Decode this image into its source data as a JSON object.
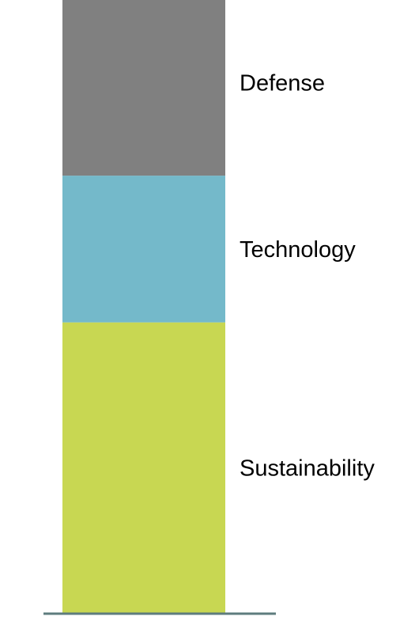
{
  "chart_data": {
    "type": "bar",
    "orientation": "vertical",
    "stacked": true,
    "categories": [
      ""
    ],
    "series": [
      {
        "name": "Sustainability",
        "values": [
          48.5
        ],
        "color": "#C8D752"
      },
      {
        "name": "Technology",
        "values": [
          24.5
        ],
        "color": "#74B9CA"
      },
      {
        "name": "Defense",
        "values": [
          31.0
        ],
        "color": "#808080"
      }
    ],
    "axis_color": "#5E7C7E",
    "label_placement": "right-of-segments",
    "legend": "none",
    "grid": false,
    "ylim": [
      0,
      101.4
    ]
  }
}
